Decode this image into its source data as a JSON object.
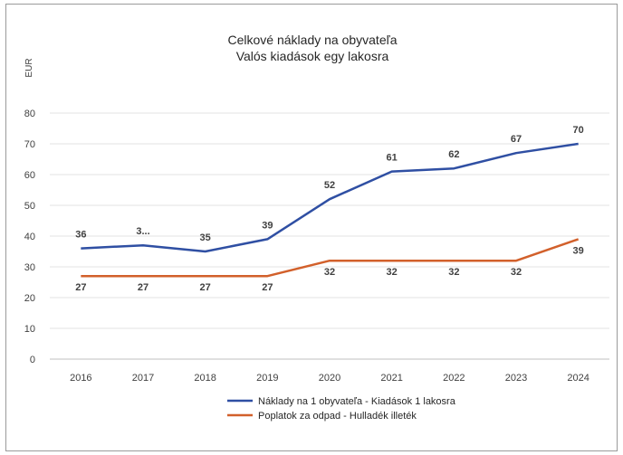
{
  "chart_data": {
    "type": "line",
    "title": [
      "Celkové náklady na obyvateľa",
      "Valós kiadások egy lakosra"
    ],
    "ylabel": "EUR",
    "xlabel": "",
    "categories": [
      "2016",
      "2017",
      "2018",
      "2019",
      "2020",
      "2021",
      "2022",
      "2023",
      "2024"
    ],
    "ylim": [
      0,
      80
    ],
    "yticks": [
      "0",
      "10",
      "20",
      "30",
      "40",
      "50",
      "60",
      "70",
      "80"
    ],
    "grid": true,
    "legend_position": "bottom",
    "series": [
      {
        "name": "Náklady na 1 obyvateľa - Kiadások 1 lakosra",
        "color": "#2f4fa3",
        "values": [
          36,
          37,
          35,
          39,
          52,
          61,
          62,
          67,
          70
        ],
        "labels": [
          "36",
          "3...",
          "35",
          "39",
          "52",
          "61",
          "62",
          "67",
          "70"
        ]
      },
      {
        "name": "Poplatok za odpad - Hulladék illeték",
        "color": "#d2602b",
        "values": [
          27,
          27,
          27,
          27,
          32,
          32,
          32,
          32,
          39
        ],
        "labels": [
          "27",
          "27",
          "27",
          "27",
          "32",
          "32",
          "32",
          "32",
          "39"
        ]
      }
    ]
  }
}
